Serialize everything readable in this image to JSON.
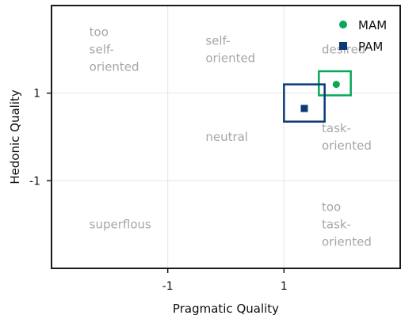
{
  "chart_data": {
    "type": "scatter",
    "xlabel": "Pragmatic Quality",
    "ylabel": "Hedonic Quality",
    "xlim": [
      -3,
      3
    ],
    "ylim": [
      -3,
      3
    ],
    "xticks": [
      -1,
      1
    ],
    "yticks": [
      1,
      -1
    ],
    "grid": true,
    "legend_position": "top-right",
    "regions": [
      {
        "lines": [
          "too",
          "self-",
          "oriented"
        ],
        "x": -2.35,
        "y": 2.0
      },
      {
        "lines": [
          "self-",
          "oriented"
        ],
        "x": -0.35,
        "y": 2.0
      },
      {
        "lines": [
          "desired"
        ],
        "x": 1.65,
        "y": 2.0
      },
      {
        "lines": [
          "neutral"
        ],
        "x": -0.35,
        "y": 0.0
      },
      {
        "lines": [
          "task-",
          "oriented"
        ],
        "x": 1.65,
        "y": 0.0
      },
      {
        "lines": [
          "superflous"
        ],
        "x": -2.35,
        "y": -2.0
      },
      {
        "lines": [
          "too",
          "task-",
          "oriented"
        ],
        "x": 1.65,
        "y": -2.0
      }
    ],
    "series": [
      {
        "name": "MAM",
        "marker": "circle",
        "color": "#0aa65a",
        "x": 1.9,
        "y": 1.2,
        "conf_x": [
          1.6,
          2.15
        ],
        "conf_y": [
          0.95,
          1.5
        ]
      },
      {
        "name": "PAM",
        "marker": "square",
        "color": "#0a3a78",
        "x": 1.35,
        "y": 0.65,
        "conf_x": [
          1.0,
          1.7
        ],
        "conf_y": [
          0.35,
          1.2
        ]
      }
    ]
  }
}
